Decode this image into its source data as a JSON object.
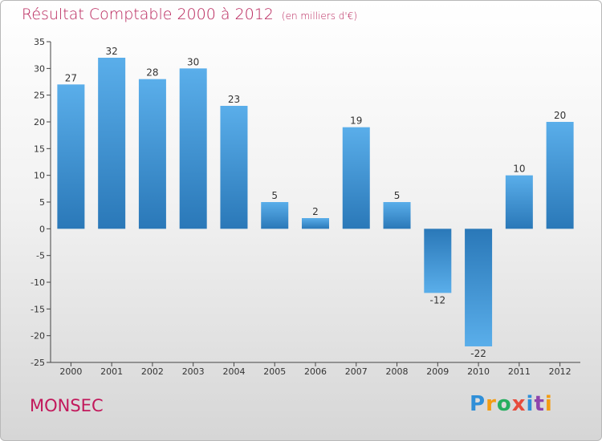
{
  "header": {
    "title": "Résultat Comptable 2000 à 2012",
    "subtitle": "(en milliers d'€)"
  },
  "footer": {
    "commune": "MONSEC",
    "logo_letters": [
      "P",
      "r",
      "o",
      "x",
      "i",
      "t",
      "i"
    ]
  },
  "colors": {
    "bar_light": "#5aaeea",
    "bar_dark": "#2a78b8",
    "title": "#b8235a"
  },
  "chart_data": {
    "type": "bar",
    "title": "Résultat Comptable 2000 à 2012",
    "subtitle": "(en milliers d'€)",
    "xlabel": "",
    "ylabel": "",
    "ylim": [
      -25,
      35
    ],
    "ytick_step": 5,
    "grid": false,
    "categories": [
      "2000",
      "2001",
      "2002",
      "2003",
      "2004",
      "2005",
      "2006",
      "2007",
      "2008",
      "2009",
      "2010",
      "2011",
      "2012"
    ],
    "values": [
      27,
      32,
      28,
      30,
      23,
      5,
      2,
      19,
      5,
      -12,
      -22,
      10,
      20
    ]
  }
}
